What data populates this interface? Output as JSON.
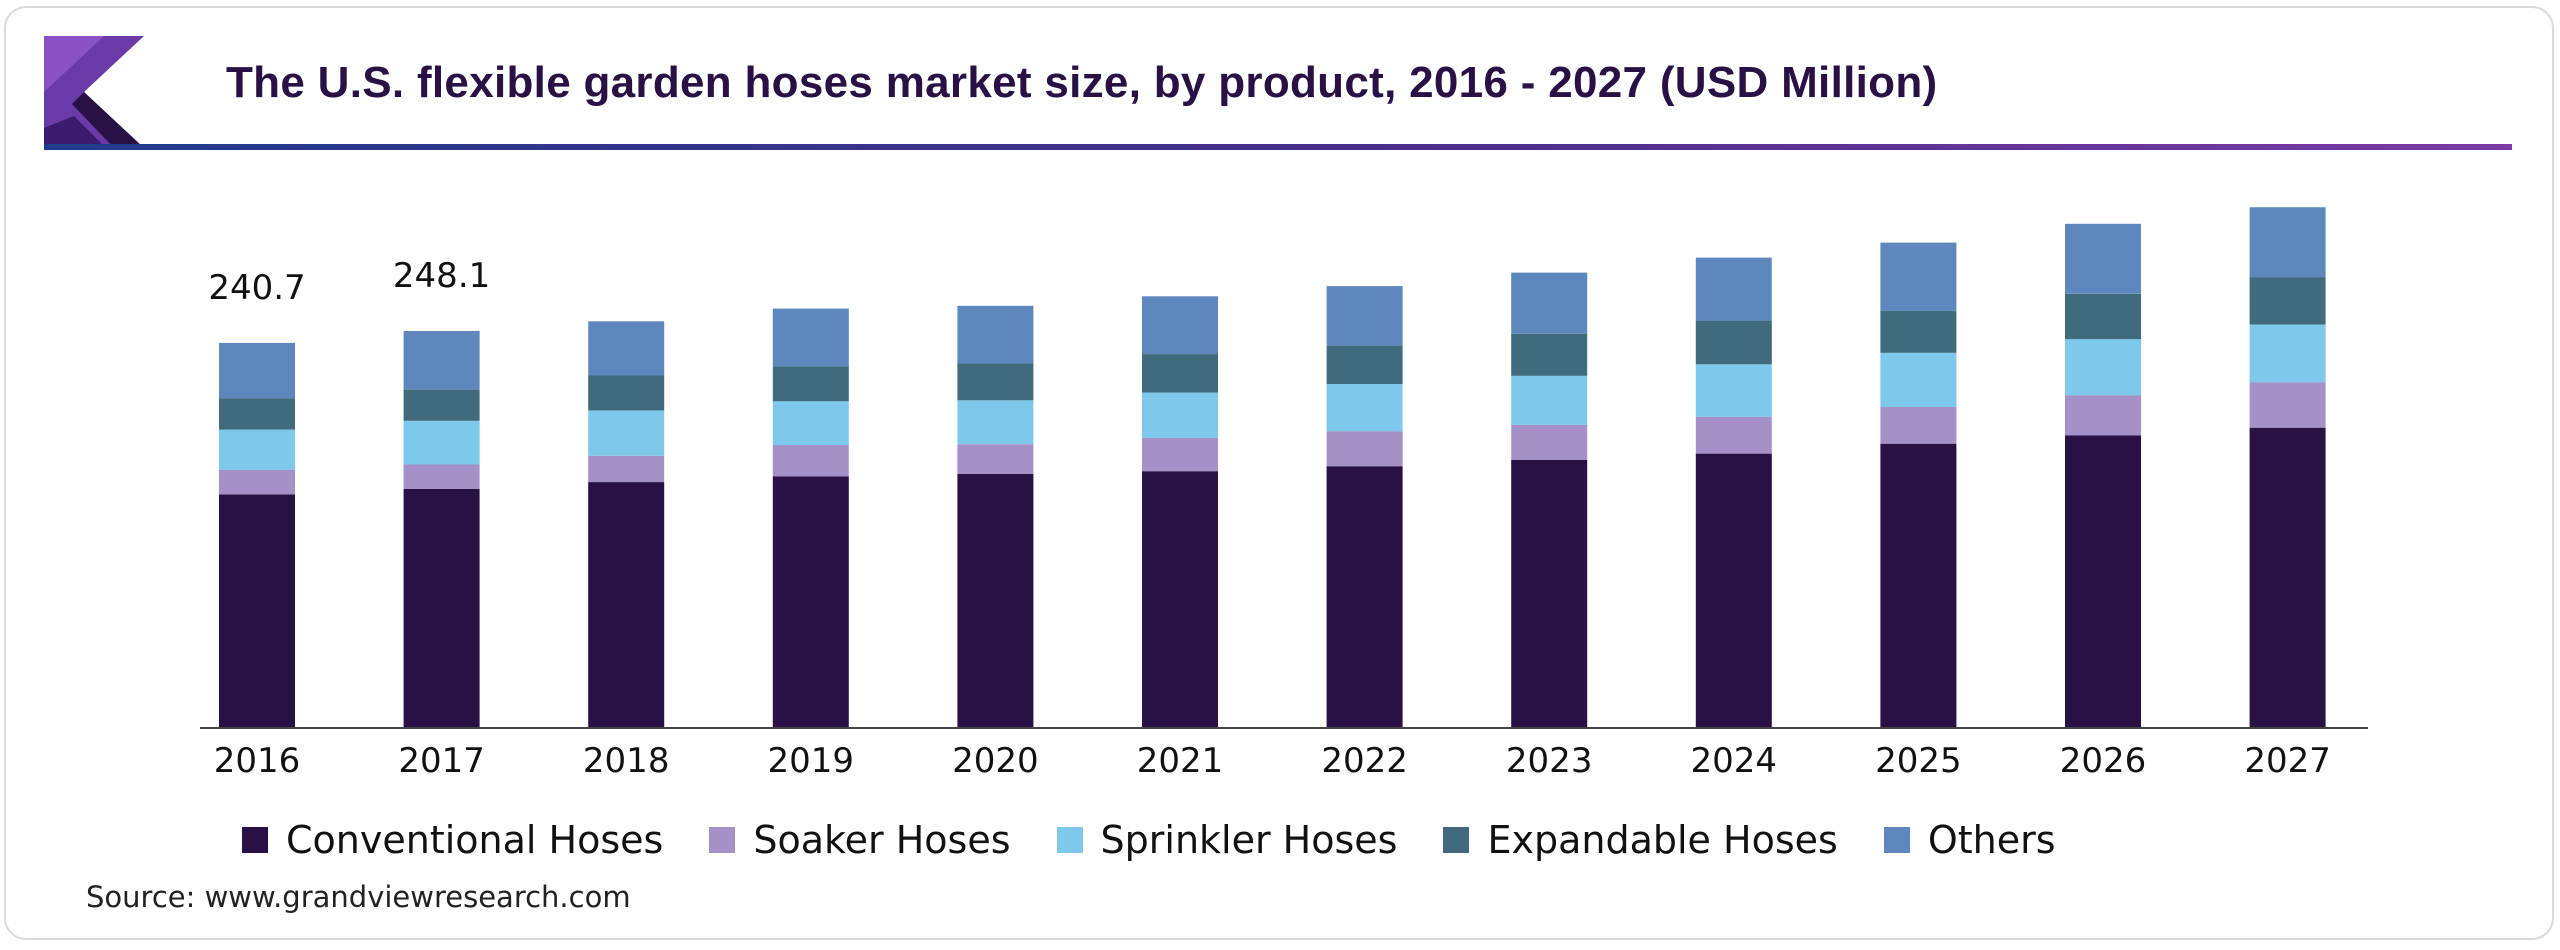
{
  "title": "The U.S. flexible garden hoses market size, by product, 2016 - 2027 (USD Million)",
  "source": "Source: www.grandviewresearch.com",
  "logo": {
    "icon": "grand-view-research-logo-icon",
    "colors": [
      "#6a3aa8",
      "#3a1b6e",
      "#2a1145"
    ]
  },
  "colors": {
    "Conventional Hoses": "#2a1145",
    "Soaker Hoses": "#a690c8",
    "Sprinkler Hoses": "#7ec8ec",
    "Expandable Hoses": "#3f6b7d",
    "Others": "#5e88bd",
    "axis": "#444444"
  },
  "chart_data": {
    "type": "bar",
    "stacked": true,
    "title": "The U.S. flexible garden hoses market size, by product, 2016 - 2027 (USD Million)",
    "xlabel": "",
    "ylabel": "",
    "grid": false,
    "legend_position": "bottom",
    "categories": [
      "2016",
      "2017",
      "2018",
      "2019",
      "2020",
      "2021",
      "2022",
      "2023",
      "2024",
      "2025",
      "2026",
      "2027"
    ],
    "ylim": [
      0,
      340
    ],
    "series": [
      {
        "name": "Conventional Hoses",
        "values": [
          146.0,
          149.4,
          153.7,
          157.2,
          158.8,
          160.5,
          163.6,
          167.6,
          171.5,
          177.7,
          182.8,
          187.7
        ]
      },
      {
        "name": "Soaker Hoses",
        "values": [
          15.3,
          15.3,
          16.4,
          19.7,
          18.6,
          20.8,
          21.9,
          21.9,
          23.0,
          22.9,
          25.2,
          28.4
        ]
      },
      {
        "name": "Sprinkler Hoses",
        "values": [
          25.2,
          27.3,
          28.4,
          27.3,
          27.4,
          28.4,
          29.5,
          30.6,
          32.8,
          33.9,
          35.0,
          36.1
        ]
      },
      {
        "name": "Expandable Hoses",
        "values": [
          19.6,
          19.7,
          21.8,
          21.8,
          23.0,
          24.0,
          24.0,
          26.2,
          27.3,
          26.3,
          28.4,
          29.6
        ]
      },
      {
        "name": "Others",
        "values": [
          34.6,
          36.4,
          33.9,
          36.1,
          36.1,
          36.1,
          37.2,
          38.3,
          39.4,
          42.6,
          43.7,
          43.7
        ]
      }
    ],
    "totals_labeled": [
      {
        "category": "2016",
        "label": "240.7"
      },
      {
        "category": "2017",
        "label": "248.1"
      }
    ]
  }
}
